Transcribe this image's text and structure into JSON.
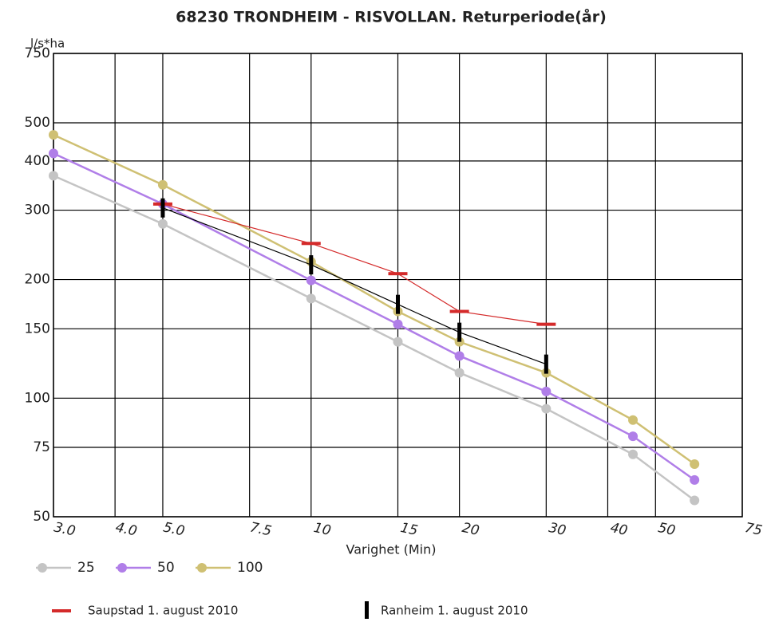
{
  "chart_data": {
    "type": "line",
    "title": "68230 TRONDHEIM - RISVOLLAN. Returperiode(år)",
    "y_label": "l/s*ha",
    "x_label": "Varighet  (Min)",
    "x_scale": "log",
    "y_scale": "log",
    "grid": true,
    "xlim": [
      3,
      75
    ],
    "ylim": [
      50,
      750
    ],
    "xticks": [
      {
        "value": 3,
        "label": "3.0"
      },
      {
        "value": 4,
        "label": "4.0"
      },
      {
        "value": 5,
        "label": "5.0"
      },
      7.5,
      10,
      15,
      20,
      30,
      40,
      50,
      75
    ],
    "yticks": [
      50,
      75,
      100,
      150,
      200,
      300,
      400,
      500,
      750
    ],
    "series": [
      {
        "name": "25",
        "color": "#c4c4c4",
        "marker": "dot",
        "x": [
          3,
          5,
          10,
          15,
          20,
          30,
          45,
          60
        ],
        "values": [
          367,
          277,
          179,
          139,
          116,
          94,
          72,
          55
        ]
      },
      {
        "name": "50",
        "color": "#b07ee8",
        "marker": "dot",
        "x": [
          3,
          5,
          10,
          15,
          20,
          30,
          45,
          60
        ],
        "values": [
          418,
          311,
          199,
          154,
          128,
          104,
          80,
          62
        ]
      },
      {
        "name": "100",
        "color": "#cfc073",
        "marker": "dot",
        "x": [
          3,
          5,
          10,
          15,
          20,
          30,
          45,
          60
        ],
        "values": [
          466,
          348,
          222,
          166,
          139,
          116,
          88,
          68
        ]
      },
      {
        "name": "Saupstad 1. august 2010",
        "color": "#d42a2a",
        "marker": "dash",
        "x": [
          5,
          10,
          15,
          20,
          30
        ],
        "values": [
          311,
          247,
          207,
          166,
          154
        ]
      },
      {
        "name": "Ranheim 1. august 2010",
        "color": "#000000",
        "marker": "vbar",
        "x": [
          5,
          10,
          15,
          20,
          30
        ],
        "values": [
          304,
          218,
          173,
          147,
          122
        ]
      }
    ]
  }
}
